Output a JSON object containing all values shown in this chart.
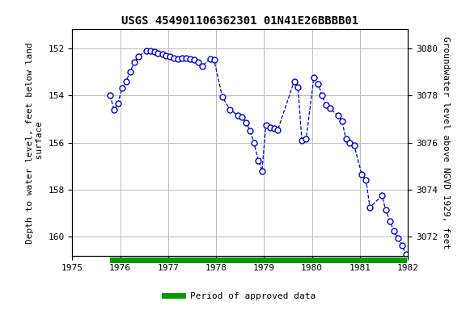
{
  "title": "USGS 454901106362301 01N41E26BBBB01",
  "ylabel_left": "Depth to water level, feet below land\n surface",
  "ylabel_right": "Groundwater level above NGVD 1929, feet",
  "xlabel": "",
  "ylim_left": [
    160.8,
    151.2
  ],
  "ylim_right": [
    3071.2,
    3080.8
  ],
  "xlim": [
    1975.0,
    1982.0
  ],
  "xticks": [
    1975,
    1976,
    1977,
    1978,
    1979,
    1980,
    1981,
    1982
  ],
  "yticks_left": [
    152.0,
    154.0,
    156.0,
    158.0,
    160.0
  ],
  "yticks_right": [
    3072.0,
    3074.0,
    3076.0,
    3078.0,
    3080.0
  ],
  "line_color": "#0000bb",
  "marker_color": "#0000bb",
  "background_color": "#ffffff",
  "grid_color": "#bbbbbb",
  "legend_label": "Period of approved data",
  "legend_color": "#009900",
  "x_data": [
    1975.79,
    1975.87,
    1975.95,
    1976.04,
    1976.12,
    1976.21,
    1976.29,
    1976.38,
    1976.54,
    1976.63,
    1976.71,
    1976.79,
    1976.88,
    1976.96,
    1977.04,
    1977.13,
    1977.21,
    1977.29,
    1977.38,
    1977.46,
    1977.54,
    1977.63,
    1977.71,
    1977.88,
    1977.96,
    1978.13,
    1978.29,
    1978.46,
    1978.54,
    1978.63,
    1978.71,
    1978.79,
    1978.88,
    1978.96,
    1979.04,
    1979.13,
    1979.21,
    1979.29,
    1979.63,
    1979.71,
    1979.79,
    1979.88,
    1980.04,
    1980.13,
    1980.21,
    1980.29,
    1980.38,
    1980.54,
    1980.63,
    1980.71,
    1980.79,
    1980.88,
    1981.04,
    1981.13,
    1981.21,
    1981.46,
    1981.54,
    1981.63,
    1981.71,
    1981.79,
    1981.88,
    1981.96
  ],
  "y_data": [
    154.0,
    154.6,
    154.35,
    153.7,
    153.4,
    153.0,
    152.6,
    152.35,
    152.1,
    152.1,
    152.15,
    152.2,
    152.25,
    152.3,
    152.35,
    152.4,
    152.45,
    152.4,
    152.4,
    152.45,
    152.5,
    152.6,
    152.75,
    152.45,
    152.5,
    154.05,
    154.6,
    154.85,
    154.9,
    155.15,
    155.5,
    156.0,
    156.75,
    157.2,
    155.25,
    155.35,
    155.4,
    155.45,
    153.4,
    153.65,
    155.9,
    155.85,
    153.25,
    153.5,
    154.0,
    154.4,
    154.55,
    154.85,
    155.1,
    155.85,
    156.0,
    156.1,
    157.35,
    157.6,
    158.75,
    158.25,
    158.85,
    159.35,
    159.75,
    160.05,
    160.35,
    160.75
  ],
  "bar_x_start": 1975.79,
  "bar_x_end": 1981.96,
  "title_fontsize": 10,
  "tick_fontsize": 8,
  "label_fontsize": 8
}
